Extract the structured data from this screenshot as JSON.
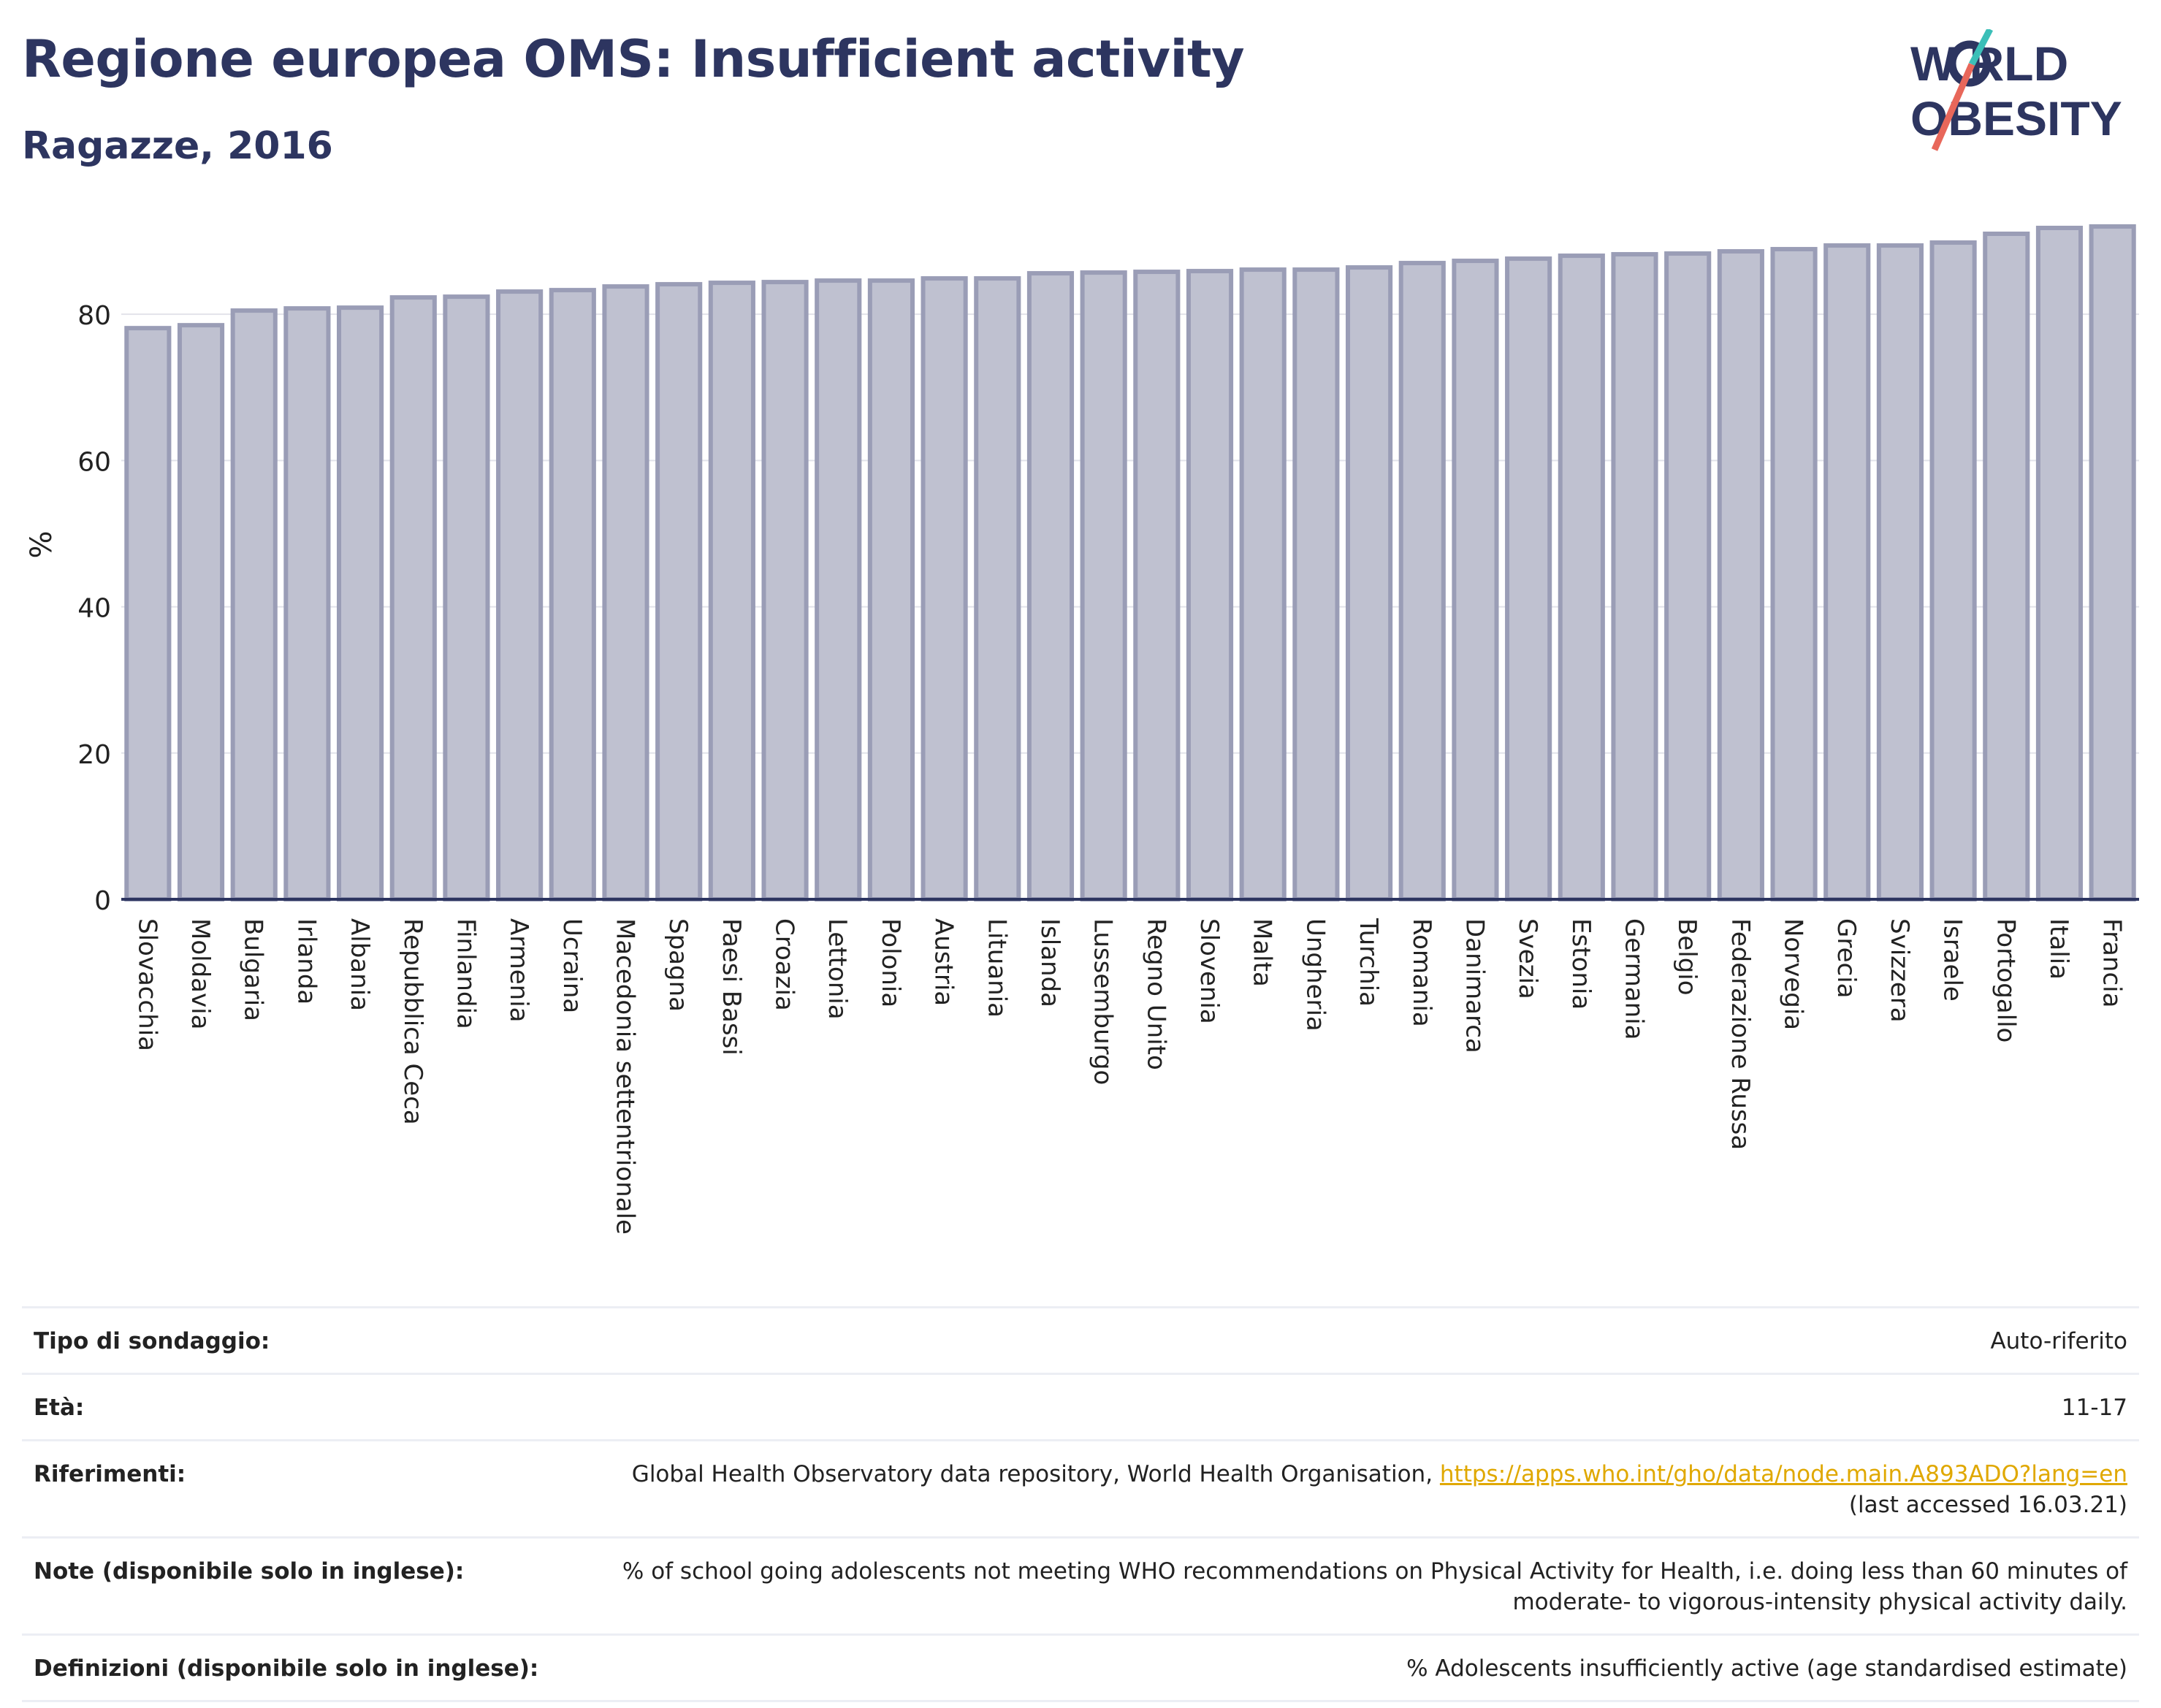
{
  "header": {
    "title": "Regione europea OMS: Insufficient activity",
    "subtitle": "Ragazze, 2016",
    "logo_line1": "W   RLD",
    "logo_line2": "OBESITY"
  },
  "colors": {
    "title": "#2d3560",
    "bar_fill": "#bfc1d0",
    "bar_stroke": "#9a9db6",
    "axis": "#2d3560",
    "grid": "#e2e3ea",
    "logo_teal": "#3bbfb8",
    "logo_coral": "#e8675a"
  },
  "chart_data": {
    "type": "bar",
    "ylabel": "%",
    "ylim": [
      0,
      93
    ],
    "yticks": [
      0,
      20,
      40,
      60,
      80
    ],
    "grid": true,
    "categories": [
      "Slovacchia",
      "Moldavia",
      "Bulgaria",
      "Irlanda",
      "Albania",
      "Repubblica Ceca",
      "Finlandia",
      "Armenia",
      "Ucraina",
      "Macedonia settentrionale",
      "Spagna",
      "Paesi Bassi",
      "Croazia",
      "Lettonia",
      "Polonia",
      "Austria",
      "Lituania",
      "Islanda",
      "Lussemburgo",
      "Regno Unito",
      "Slovenia",
      "Malta",
      "Ungheria",
      "Turchia",
      "Romania",
      "Danimarca",
      "Svezia",
      "Estonia",
      "Germania",
      "Belgio",
      "Federazione Russa",
      "Norvegia",
      "Grecia",
      "Svizzera",
      "Israele",
      "Portogallo",
      "Italia",
      "Francia"
    ],
    "values": [
      78.1,
      78.5,
      80.5,
      80.8,
      80.9,
      82.3,
      82.4,
      83.1,
      83.3,
      83.8,
      84.1,
      84.3,
      84.4,
      84.6,
      84.6,
      84.9,
      84.9,
      85.6,
      85.7,
      85.8,
      85.9,
      86.1,
      86.1,
      86.4,
      87.0,
      87.3,
      87.6,
      88.0,
      88.2,
      88.3,
      88.6,
      88.9,
      89.4,
      89.4,
      89.8,
      91.0,
      91.8,
      92.0
    ]
  },
  "meta": {
    "rows": [
      {
        "label": "Tipo di sondaggio:",
        "value": "Auto-riferito"
      },
      {
        "label": "Età:",
        "value": "11-17"
      },
      {
        "label": "Riferimenti:",
        "value": "Global Health Observatory data repository, World Health Organisation, ",
        "link": "https://apps.who.int/gho/data/node.main.A893ADO?lang=en",
        "value2": "(last accessed 16.03.21)"
      },
      {
        "label": "Note (disponibile solo in inglese):",
        "value": "% of school going adolescents not meeting WHO recommendations on Physical Activity for Health, i.e. doing less than 60 minutes of moderate- to vigorous-intensity physical activity daily."
      },
      {
        "label": "Definizioni (disponibile solo in inglese):",
        "value": "% Adolescents insufficiently active (age standardised estimate)"
      }
    ]
  }
}
